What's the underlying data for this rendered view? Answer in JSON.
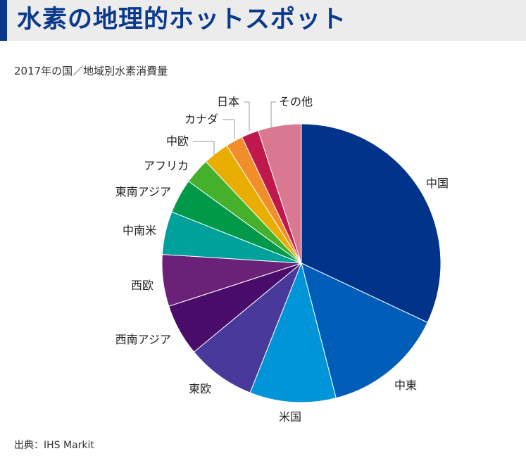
{
  "header": {
    "title": "水素の地理的ホットスポット"
  },
  "chart_data": {
    "type": "pie",
    "subtitle": "2017年の国／地域別水素消費量",
    "source": "出典：IHS Markit",
    "slices": [
      {
        "label": "中国",
        "value": 32.0,
        "color": "#00338a"
      },
      {
        "label": "中東",
        "value": 14.0,
        "color": "#005eb8"
      },
      {
        "label": "米国",
        "value": 10.0,
        "color": "#0095d9"
      },
      {
        "label": "東欧",
        "value": 8.0,
        "color": "#48399a"
      },
      {
        "label": "西南アジア",
        "value": 6.0,
        "color": "#4a0c6a"
      },
      {
        "label": "西欧",
        "value": 6.0,
        "color": "#6c2178"
      },
      {
        "label": "中南米",
        "value": 5.0,
        "color": "#00a19a"
      },
      {
        "label": "東南アジア",
        "value": 4.0,
        "color": "#00994a"
      },
      {
        "label": "アフリカ",
        "value": 3.0,
        "color": "#45b02c"
      },
      {
        "label": "中欧",
        "value": 3.0,
        "color": "#e9ad00"
      },
      {
        "label": "カナダ",
        "value": 2.0,
        "color": "#f18e2a"
      },
      {
        "label": "日本",
        "value": 2.0,
        "color": "#c0174d"
      },
      {
        "label": "その他",
        "value": 5.0,
        "color": "#d97891"
      }
    ]
  }
}
